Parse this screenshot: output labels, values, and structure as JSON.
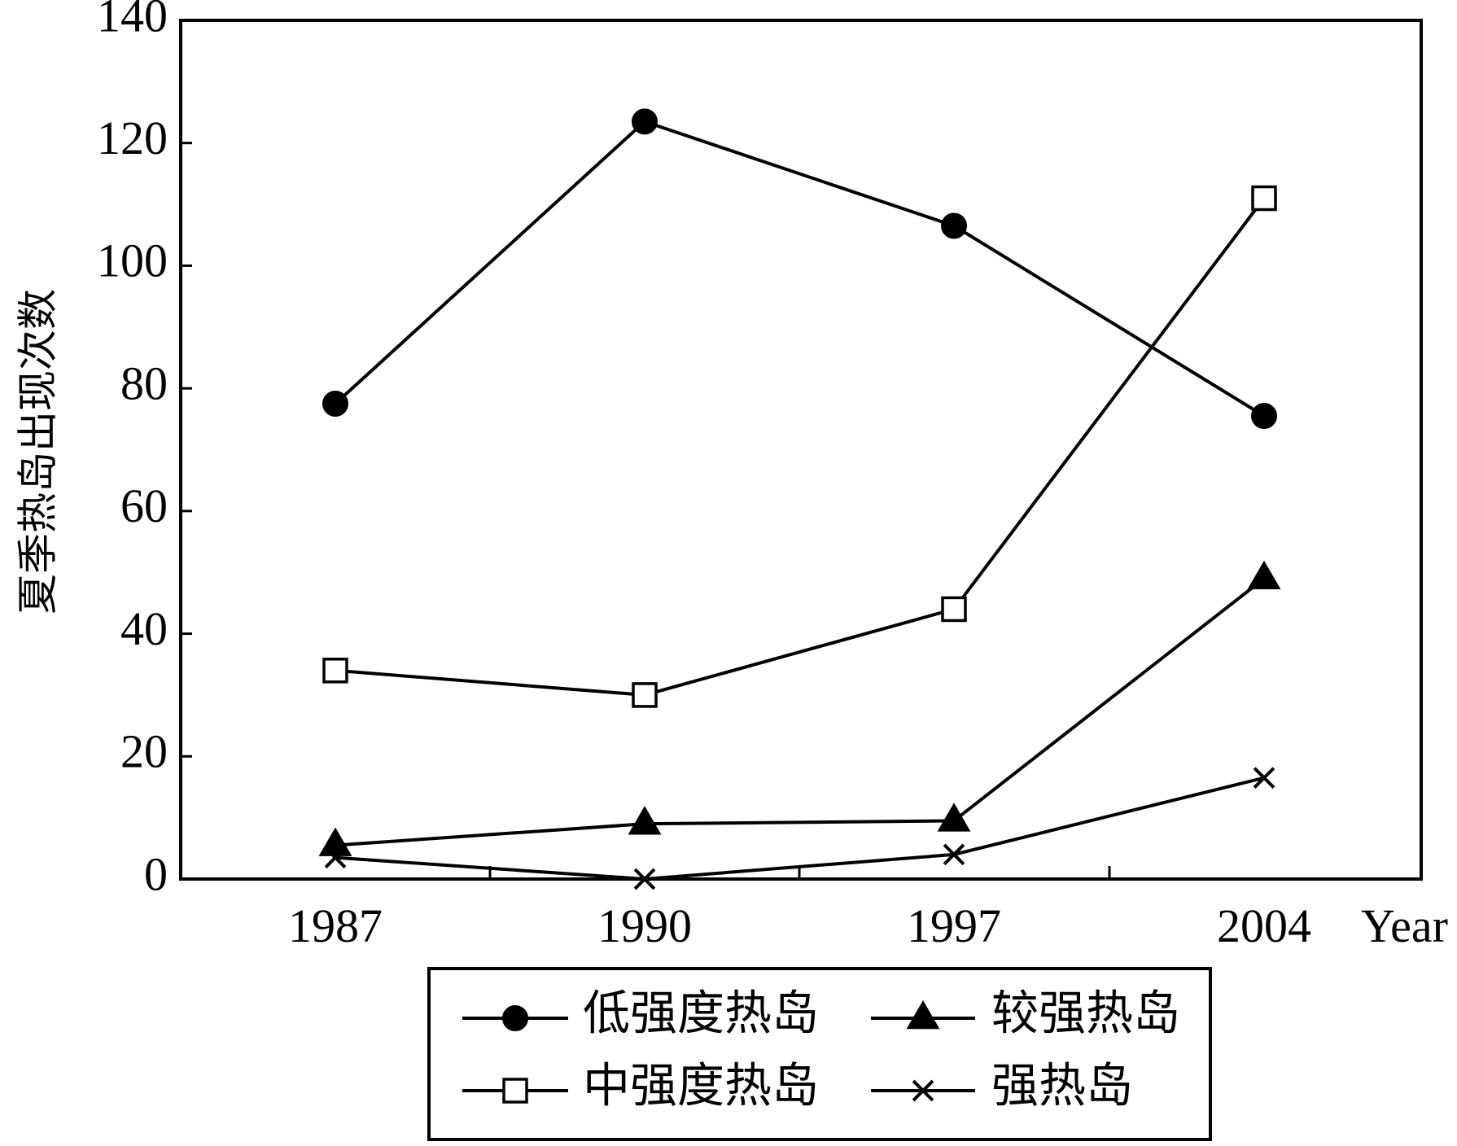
{
  "chart_data": {
    "type": "line",
    "title": "",
    "xlabel": "Year",
    "ylabel": "夏季热岛出现次数",
    "categories": [
      "1987",
      "1990",
      "1997",
      "2004"
    ],
    "ylim": [
      0,
      140
    ],
    "yticks": [
      0,
      20,
      40,
      60,
      80,
      100,
      120,
      140
    ],
    "grid": false,
    "legend_position": "bottom",
    "series": [
      {
        "name": "低强度热岛",
        "marker": "filled-circle",
        "values": [
          77.5,
          123.5,
          106.5,
          75.5
        ]
      },
      {
        "name": "较强热岛",
        "marker": "filled-triangle",
        "values": [
          5.5,
          9.0,
          9.5,
          49.0
        ]
      },
      {
        "name": "中强度热岛",
        "marker": "open-square",
        "values": [
          34.0,
          30.0,
          44.0,
          111.0
        ]
      },
      {
        "name": "强热岛",
        "marker": "cross",
        "values": [
          3.5,
          0.0,
          4.0,
          16.5
        ]
      }
    ],
    "colors": {
      "line": "#000000",
      "background": "#ffffff"
    }
  }
}
